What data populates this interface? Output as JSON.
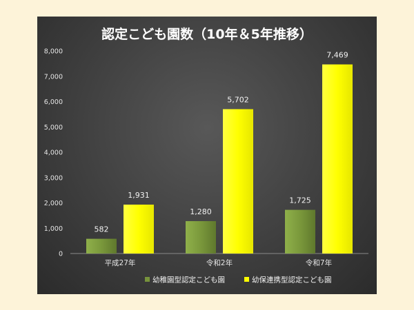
{
  "chart_data": {
    "type": "bar",
    "title": "認定こども園数（10年＆5年推移）",
    "categories": [
      "平成27年",
      "令和2年",
      "令和7年"
    ],
    "series": [
      {
        "name": "幼稚園型認定こども園",
        "values": [
          582,
          1280,
          1725
        ],
        "color": "#77933c",
        "label": [
          "582",
          "1,280",
          "1,725"
        ]
      },
      {
        "name": "幼保連携型認定こども園",
        "values": [
          1931,
          5702,
          7469
        ],
        "color": "#ffff00",
        "label": [
          "1,931",
          "5,702",
          "7,469"
        ]
      }
    ],
    "ylim": [
      0,
      8000
    ],
    "yticks": [
      0,
      1000,
      2000,
      3000,
      4000,
      5000,
      6000,
      7000,
      8000
    ],
    "ytick_labels": [
      "0",
      "1,000",
      "2,000",
      "3,000",
      "4,000",
      "5,000",
      "6,000",
      "7,000",
      "8,000"
    ],
    "grid": false,
    "legend_position": "bottom"
  }
}
